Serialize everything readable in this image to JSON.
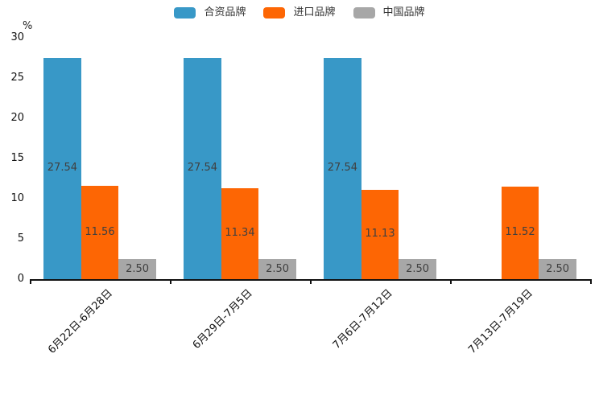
{
  "chart_data": {
    "type": "bar",
    "title": "",
    "ylabel": "%",
    "xlabel": "",
    "ylim": [
      0,
      30
    ],
    "yticks": [
      0,
      5,
      10,
      15,
      20,
      25,
      30
    ],
    "grid": false,
    "legend_position": "top",
    "value_label_position": "inside-center",
    "value_label_color": "#404040",
    "axis_color": "#111111",
    "categories": [
      "6月22日-6月28日",
      "6月29日-7月5日",
      "7月6日-7月12日",
      "7月13日-7月19日"
    ],
    "series": [
      {
        "name": "合资品牌",
        "color": "#3898c7",
        "values": [
          27.54,
          27.54,
          27.54,
          null
        ],
        "labels": [
          "27.54",
          "27.54",
          "27.54",
          ""
        ]
      },
      {
        "name": "进口品牌",
        "color": "#fd6604",
        "values": [
          11.56,
          11.34,
          11.13,
          11.52
        ],
        "labels": [
          "11.56",
          "11.34",
          "11.13",
          "11.52"
        ]
      },
      {
        "name": "中国品牌",
        "color": "#a7a7a7",
        "values": [
          2.5,
          2.5,
          2.5,
          2.5
        ],
        "labels": [
          "2.50",
          "2.50",
          "2.50",
          "2.50"
        ]
      }
    ]
  }
}
